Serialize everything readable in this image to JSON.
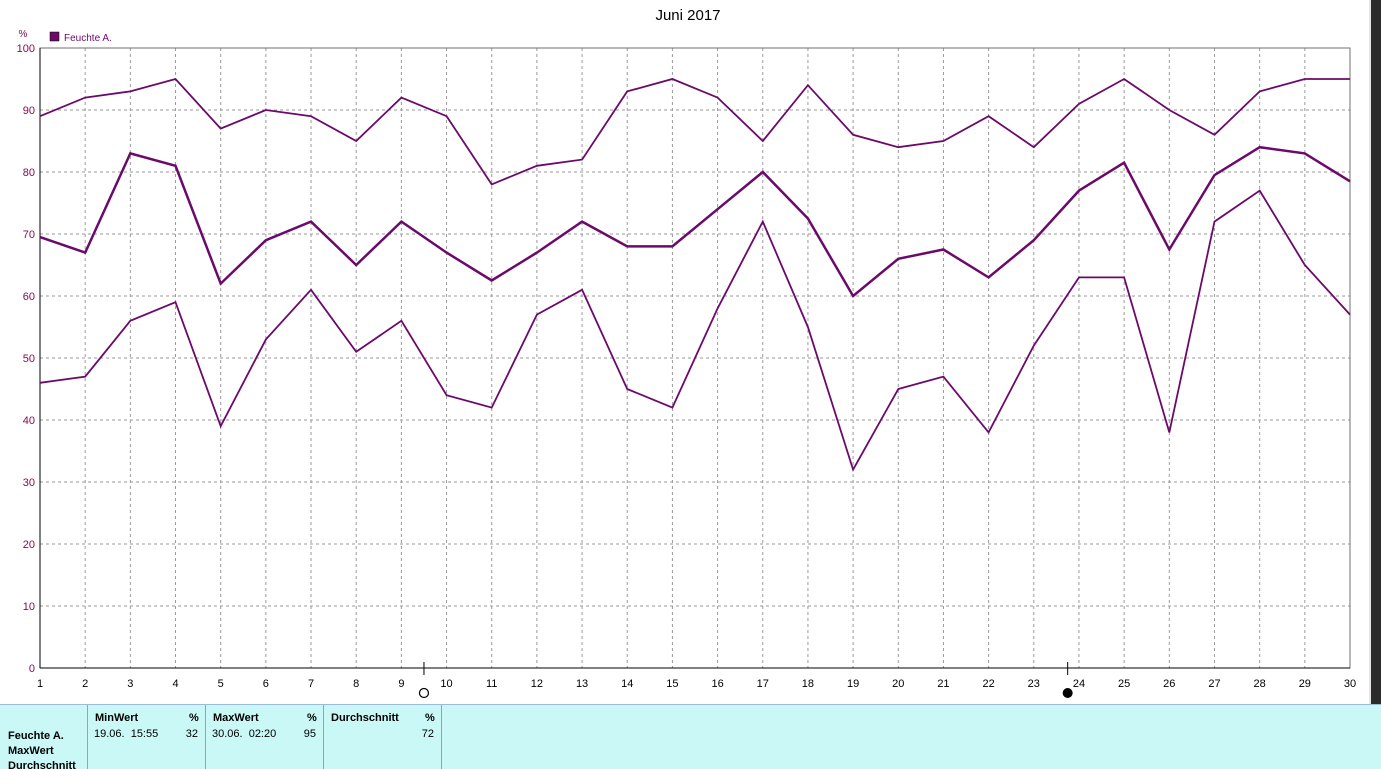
{
  "chart_data": {
    "type": "line",
    "title": "Juni 2017",
    "ylabel": "%",
    "ylim": [
      0,
      100
    ],
    "yticks": [
      0,
      10,
      20,
      30,
      40,
      50,
      60,
      70,
      80,
      90,
      100
    ],
    "x": [
      1,
      2,
      3,
      4,
      5,
      6,
      7,
      8,
      9,
      10,
      11,
      12,
      13,
      14,
      15,
      16,
      17,
      18,
      19,
      20,
      21,
      22,
      23,
      24,
      25,
      26,
      27,
      28,
      29,
      30
    ],
    "legend": [
      {
        "label": "Feuchte A.",
        "color": "#6b0a6b"
      }
    ],
    "grid": true,
    "series": [
      {
        "role": "max",
        "values": [
          89,
          92,
          93,
          95,
          87,
          90,
          89,
          85,
          92,
          89,
          78,
          81,
          82,
          93,
          95,
          92,
          85,
          94,
          86,
          84,
          85,
          89,
          84,
          91,
          95,
          90,
          86,
          93,
          95,
          95
        ]
      },
      {
        "role": "avg",
        "values": [
          69.5,
          67,
          83,
          81,
          62,
          69,
          72,
          65,
          72,
          67,
          62.5,
          67,
          72,
          68,
          68,
          74,
          80,
          72.5,
          60,
          66,
          67.5,
          63,
          69,
          77,
          81.5,
          67.5,
          79.5,
          84,
          83,
          78.5
        ]
      },
      {
        "role": "min",
        "values": [
          46,
          47,
          56,
          59,
          39,
          53,
          61,
          51,
          56,
          44,
          42,
          57,
          61,
          45,
          42,
          58,
          72,
          55,
          32,
          45,
          47,
          38,
          52,
          63,
          63,
          38,
          72,
          77,
          65,
          57
        ]
      }
    ],
    "markers": [
      {
        "x": 9.5,
        "symbol": "open-circle"
      },
      {
        "x": 23.75,
        "symbol": "filled-circle"
      }
    ],
    "colors": {
      "line": "#6b0a6b",
      "axis_text": "#8b0a50",
      "grid": "#9a9a9a"
    }
  },
  "stats": {
    "row_labels": [
      "Feuchte A.",
      "MaxWert",
      "Durchschnitt"
    ],
    "columns": [
      {
        "header": "MinWert",
        "unit": "%",
        "date": "19.06.  15:55",
        "value": "32"
      },
      {
        "header": "MaxWert",
        "unit": "%",
        "date": "30.06.  02:20",
        "value": "95"
      },
      {
        "header": "Durchschnitt",
        "unit": "%",
        "date": "",
        "value": "72"
      }
    ]
  }
}
